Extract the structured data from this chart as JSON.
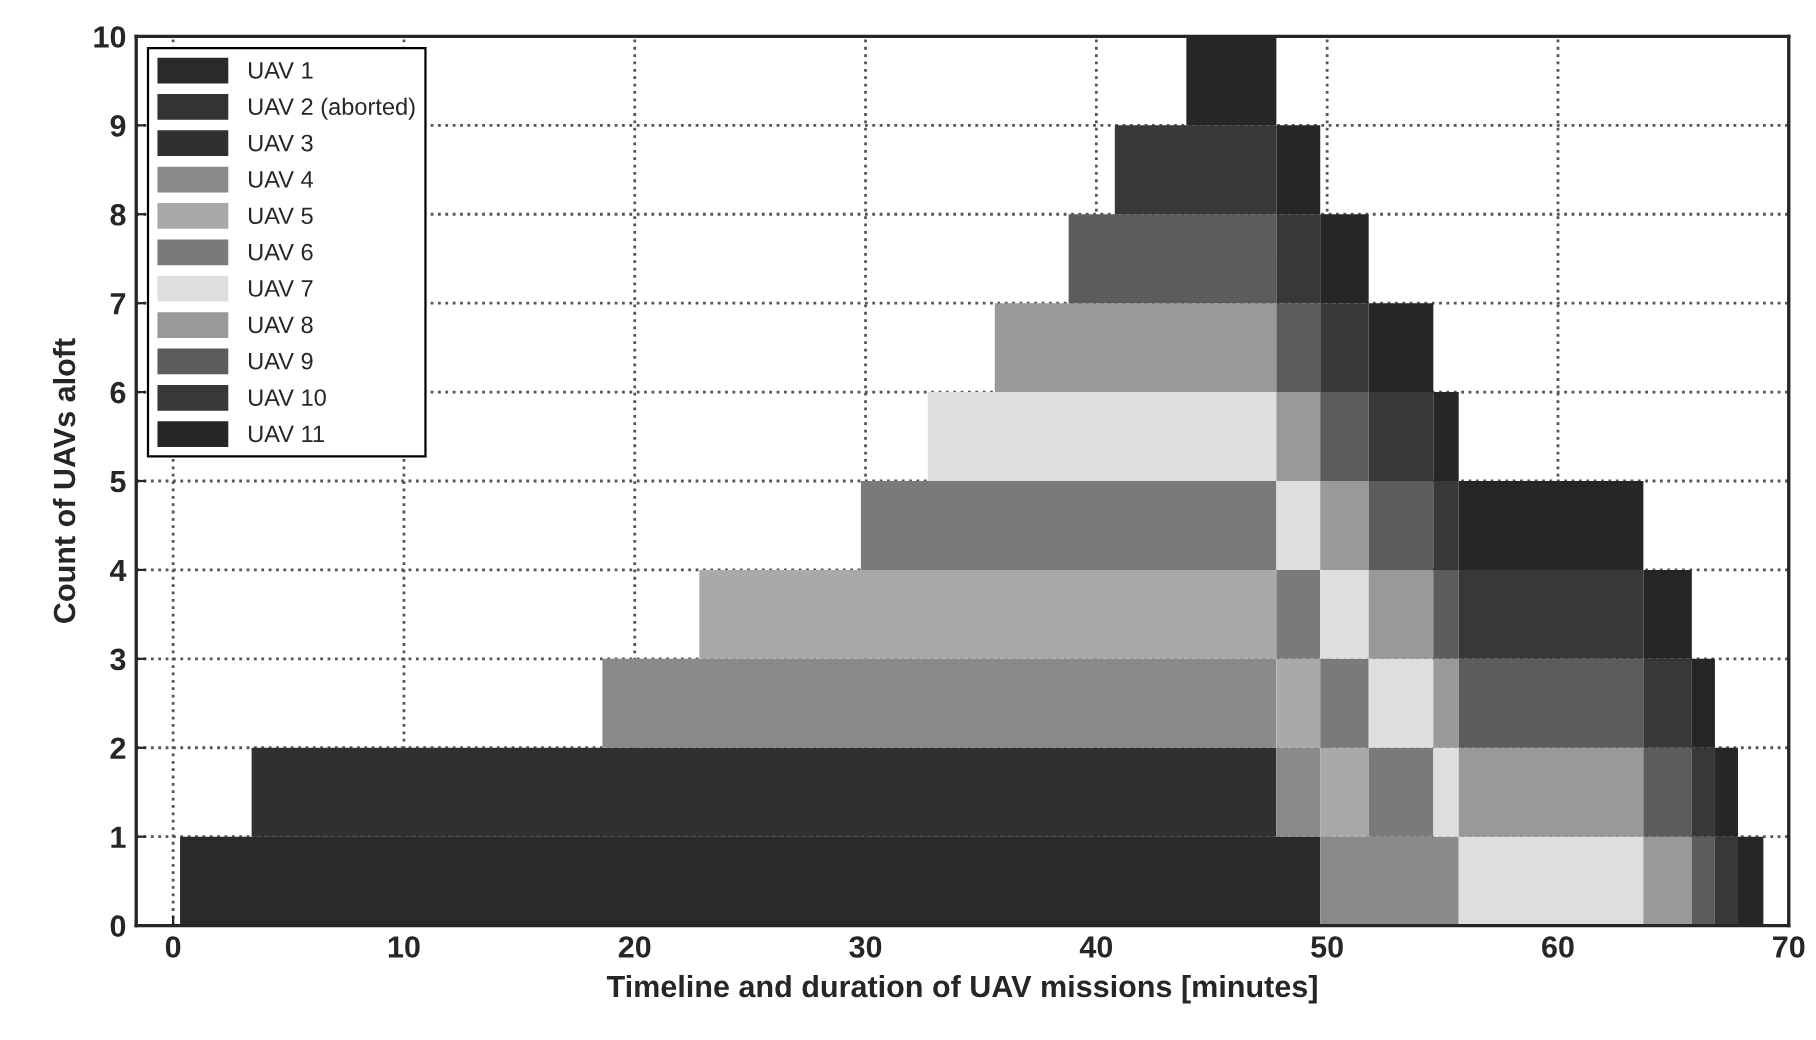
{
  "chart_data": {
    "type": "area",
    "stacked": true,
    "xlabel": "Timeline and duration of UAV missions [minutes]",
    "ylabel": "Count of UAVs aloft",
    "x": [
      0,
      0.3,
      0.3,
      3.4,
      3.4,
      18.6,
      18.6,
      22.8,
      22.8,
      29.8,
      29.8,
      32.7,
      32.7,
      35.6,
      35.6,
      38.8,
      38.8,
      40.8,
      40.8,
      43.9,
      43.9,
      47.8,
      47.8,
      49.7,
      49.7,
      51.8,
      51.8,
      54.6,
      54.6,
      55.7,
      55.7,
      63.7,
      63.7,
      65.8,
      65.8,
      66.8,
      66.8,
      67.8,
      67.8,
      68.9,
      68.9
    ],
    "series": [
      {
        "name": "UAV 1",
        "color": "#2a2a2a",
        "values": [
          0,
          0,
          1,
          1,
          1,
          1,
          1,
          1,
          1,
          1,
          1,
          1,
          1,
          1,
          1,
          1,
          1,
          1,
          1,
          1,
          1,
          1,
          1,
          1,
          0,
          0,
          0,
          0,
          0,
          0,
          0,
          0,
          0,
          0,
          0,
          0,
          0,
          0,
          0,
          0,
          0
        ]
      },
      {
        "name": "UAV 2 (aborted)",
        "color": "#333333",
        "values": [
          null,
          null,
          null,
          null,
          null,
          null,
          null,
          null,
          null,
          null,
          null,
          null,
          null,
          null,
          null,
          null,
          null,
          null,
          null,
          null,
          null,
          null,
          null,
          null,
          null,
          null,
          null,
          null,
          null,
          null,
          null,
          null,
          null,
          null,
          null,
          null,
          null,
          null,
          null,
          null,
          null
        ]
      },
      {
        "name": "UAV 3",
        "color": "#303030",
        "values": [
          0,
          0,
          0,
          0,
          1,
          1,
          1,
          1,
          1,
          1,
          1,
          1,
          1,
          1,
          1,
          1,
          1,
          1,
          1,
          1,
          1,
          1,
          0,
          0,
          0,
          0,
          0,
          0,
          0,
          0,
          0,
          0,
          0,
          0,
          0,
          0,
          0,
          0,
          0,
          0,
          0
        ]
      },
      {
        "name": "UAV 4",
        "color": "#8a8a8a",
        "values": [
          0,
          0,
          0,
          0,
          0,
          0,
          1,
          1,
          1,
          1,
          1,
          1,
          1,
          1,
          1,
          1,
          1,
          1,
          1,
          1,
          1,
          1,
          1,
          1,
          1,
          1,
          1,
          1,
          1,
          1,
          0,
          0,
          0,
          0,
          0,
          0,
          0,
          0,
          0,
          0,
          0
        ]
      },
      {
        "name": "UAV 5",
        "color": "#a9a9a9",
        "values": [
          0,
          0,
          0,
          0,
          0,
          0,
          0,
          0,
          1,
          1,
          1,
          1,
          1,
          1,
          1,
          1,
          1,
          1,
          1,
          1,
          1,
          1,
          1,
          1,
          1,
          1,
          0,
          0,
          0,
          0,
          0,
          0,
          0,
          0,
          0,
          0,
          0,
          0,
          0,
          0,
          0
        ]
      },
      {
        "name": "UAV 6",
        "color": "#7a7a7a",
        "values": [
          0,
          0,
          0,
          0,
          0,
          0,
          0,
          0,
          0,
          0,
          1,
          1,
          1,
          1,
          1,
          1,
          1,
          1,
          1,
          1,
          1,
          1,
          1,
          1,
          1,
          1,
          1,
          1,
          0,
          0,
          0,
          0,
          0,
          0,
          0,
          0,
          0,
          0,
          0,
          0,
          0
        ]
      },
      {
        "name": "UAV 7",
        "color": "#dedede",
        "values": [
          0,
          0,
          0,
          0,
          0,
          0,
          0,
          0,
          0,
          0,
          0,
          0,
          1,
          1,
          1,
          1,
          1,
          1,
          1,
          1,
          1,
          1,
          1,
          1,
          1,
          1,
          1,
          1,
          1,
          1,
          1,
          1,
          0,
          0,
          0,
          0,
          0,
          0,
          0,
          0,
          0
        ]
      },
      {
        "name": "UAV 8",
        "color": "#999999",
        "values": [
          0,
          0,
          0,
          0,
          0,
          0,
          0,
          0,
          0,
          0,
          0,
          0,
          0,
          0,
          1,
          1,
          1,
          1,
          1,
          1,
          1,
          1,
          1,
          1,
          1,
          1,
          1,
          1,
          1,
          1,
          1,
          1,
          1,
          1,
          0,
          0,
          0,
          0,
          0,
          0,
          0
        ]
      },
      {
        "name": "UAV 9",
        "color": "#5c5c5c",
        "values": [
          0,
          0,
          0,
          0,
          0,
          0,
          0,
          0,
          0,
          0,
          0,
          0,
          0,
          0,
          0,
          0,
          1,
          1,
          1,
          1,
          1,
          1,
          1,
          1,
          1,
          1,
          1,
          1,
          1,
          1,
          1,
          1,
          1,
          1,
          1,
          1,
          0,
          0,
          0,
          0,
          0
        ]
      },
      {
        "name": "UAV 10",
        "color": "#383838",
        "values": [
          0,
          0,
          0,
          0,
          0,
          0,
          0,
          0,
          0,
          0,
          0,
          0,
          0,
          0,
          0,
          0,
          0,
          0,
          1,
          1,
          1,
          1,
          1,
          1,
          1,
          1,
          1,
          1,
          1,
          1,
          1,
          1,
          1,
          1,
          1,
          1,
          1,
          1,
          0,
          0,
          0
        ]
      },
      {
        "name": "UAV 11",
        "color": "#262626",
        "values": [
          0,
          0,
          0,
          0,
          0,
          0,
          0,
          0,
          0,
          0,
          0,
          0,
          0,
          0,
          0,
          0,
          0,
          0,
          0,
          0,
          1,
          1,
          1,
          1,
          1,
          1,
          1,
          1,
          1,
          1,
          1,
          1,
          1,
          1,
          1,
          1,
          1,
          1,
          1,
          1,
          0
        ]
      }
    ],
    "xlim": [
      -1.6,
      70
    ],
    "xticks": [
      0,
      10,
      20,
      30,
      40,
      50,
      60,
      70
    ],
    "ylim": [
      0,
      10
    ],
    "yticks": [
      0,
      1,
      2,
      3,
      4,
      5,
      6,
      7,
      8,
      9,
      10
    ],
    "grid": true,
    "legend": "top left"
  }
}
